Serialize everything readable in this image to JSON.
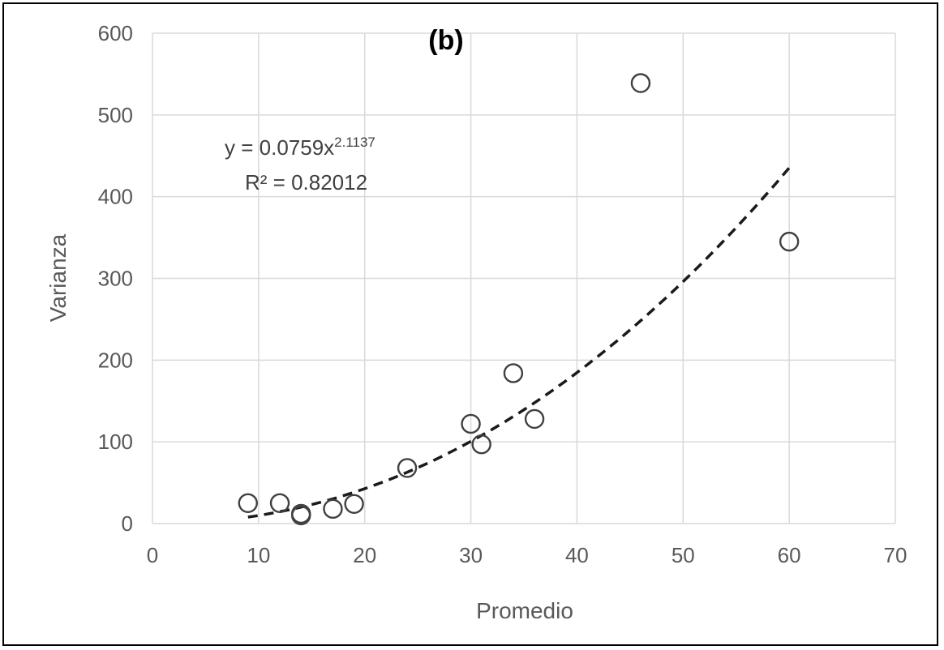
{
  "chart_data": {
    "type": "scatter",
    "panel_label": "(b)",
    "xlabel": "Promedio",
    "ylabel": "Varianza",
    "xlim": [
      0,
      70
    ],
    "ylim": [
      0,
      600
    ],
    "xticks": [
      0,
      10,
      20,
      30,
      40,
      50,
      60,
      70
    ],
    "yticks": [
      0,
      100,
      200,
      300,
      400,
      500,
      600
    ],
    "grid": true,
    "points": [
      {
        "x": 9,
        "y": 25
      },
      {
        "x": 12,
        "y": 25
      },
      {
        "x": 14,
        "y": 12
      },
      {
        "x": 14,
        "y": 10
      },
      {
        "x": 17,
        "y": 18
      },
      {
        "x": 19,
        "y": 24
      },
      {
        "x": 24,
        "y": 68
      },
      {
        "x": 30,
        "y": 122
      },
      {
        "x": 31,
        "y": 97
      },
      {
        "x": 34,
        "y": 184
      },
      {
        "x": 36,
        "y": 128
      },
      {
        "x": 46,
        "y": 539
      },
      {
        "x": 60,
        "y": 345
      }
    ],
    "trendline": {
      "type": "power",
      "coefficient": 0.0759,
      "exponent": 2.1137,
      "x_range": [
        9,
        60
      ],
      "equation_base": "y = 0.0759x",
      "equation_exponent": "2.1137",
      "r2_label": "R² = 0.82012"
    }
  }
}
